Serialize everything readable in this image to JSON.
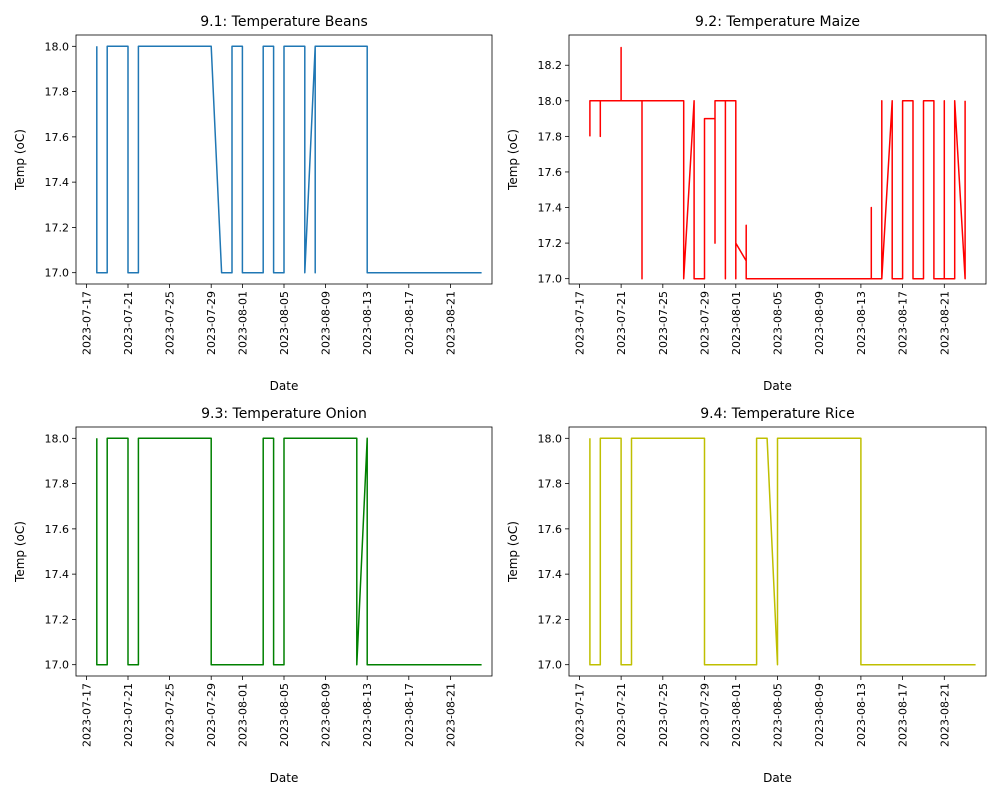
{
  "figure": {
    "background": "#ffffff"
  },
  "chart_data": [
    {
      "type": "line",
      "title": "9.1: Temperature Beans",
      "xlabel": "Date",
      "ylabel": "Temp (oC)",
      "color": "#1f77b4",
      "xlim": [
        "2023-07-16",
        "2023-08-25"
      ],
      "ylim": [
        16.95,
        18.05
      ],
      "xticks": [
        "2023-07-17",
        "2023-07-21",
        "2023-07-25",
        "2023-07-29",
        "2023-08-01",
        "2023-08-05",
        "2023-08-09",
        "2023-08-13",
        "2023-08-17",
        "2023-08-21"
      ],
      "yticks": [
        "17.0",
        "17.2",
        "17.4",
        "17.6",
        "17.8",
        "18.0"
      ],
      "series": [
        {
          "values": [
            [
              "2023-07-18 00:00",
              18.0
            ],
            [
              "2023-07-18 00:00",
              17.0
            ],
            [
              "2023-07-19 00:00",
              17.0
            ],
            [
              "2023-07-19 00:00",
              18.0
            ],
            [
              "2023-07-21 00:00",
              18.0
            ],
            [
              "2023-07-21 00:00",
              17.0
            ],
            [
              "2023-07-22 00:00",
              17.0
            ],
            [
              "2023-07-22 00:00",
              18.0
            ],
            [
              "2023-07-29 00:00",
              18.0
            ],
            [
              "2023-07-30 00:00",
              17.0
            ],
            [
              "2023-07-31 00:00",
              17.0
            ],
            [
              "2023-07-31 00:00",
              18.0
            ],
            [
              "2023-08-01 00:00",
              18.0
            ],
            [
              "2023-08-01 00:00",
              17.0
            ],
            [
              "2023-08-03 00:00",
              17.0
            ],
            [
              "2023-08-03 00:00",
              18.0
            ],
            [
              "2023-08-04 00:00",
              18.0
            ],
            [
              "2023-08-04 00:00",
              17.0
            ],
            [
              "2023-08-05 00:00",
              17.0
            ],
            [
              "2023-08-05 00:00",
              18.0
            ],
            [
              "2023-08-07 00:00",
              18.0
            ],
            [
              "2023-08-07 00:00",
              17.0
            ],
            [
              "2023-08-08 00:00",
              18.0
            ],
            [
              "2023-08-08 00:00",
              17.0
            ],
            [
              "2023-08-08 00:00",
              18.0
            ],
            [
              "2023-08-13 00:00",
              18.0
            ],
            [
              "2023-08-13 00:00",
              17.0
            ],
            [
              "2023-08-24 00:00",
              17.0
            ]
          ]
        }
      ]
    },
    {
      "type": "line",
      "title": "9.2: Temperature Maize",
      "xlabel": "Date",
      "ylabel": "Temp (oC)",
      "color": "#ff0000",
      "xlim": [
        "2023-07-16",
        "2023-08-25"
      ],
      "ylim": [
        16.97,
        18.37
      ],
      "xticks": [
        "2023-07-17",
        "2023-07-21",
        "2023-07-25",
        "2023-07-29",
        "2023-08-01",
        "2023-08-05",
        "2023-08-09",
        "2023-08-13",
        "2023-08-17",
        "2023-08-21"
      ],
      "yticks": [
        "17.0",
        "17.2",
        "17.4",
        "17.6",
        "17.8",
        "18.0",
        "18.2"
      ],
      "series": [
        {
          "values": [
            [
              "2023-07-18 00:00",
              17.8
            ],
            [
              "2023-07-18 00:00",
              18.0
            ],
            [
              "2023-07-19 00:00",
              18.0
            ],
            [
              "2023-07-19 00:00",
              17.8
            ],
            [
              "2023-07-19 00:00",
              18.0
            ],
            [
              "2023-07-21 00:00",
              18.0
            ],
            [
              "2023-07-21 00:00",
              18.3
            ],
            [
              "2023-07-21 00:00",
              18.0
            ],
            [
              "2023-07-23 00:00",
              18.0
            ],
            [
              "2023-07-23 00:00",
              17.0
            ],
            [
              "2023-07-23 00:00",
              18.0
            ],
            [
              "2023-07-27 00:00",
              18.0
            ],
            [
              "2023-07-27 00:00",
              17.0
            ],
            [
              "2023-07-28 00:00",
              18.0
            ],
            [
              "2023-07-28 00:00",
              17.0
            ],
            [
              "2023-07-29 00:00",
              17.0
            ],
            [
              "2023-07-29 00:00",
              17.9
            ],
            [
              "2023-07-30 00:00",
              17.9
            ],
            [
              "2023-07-30 00:00",
              17.2
            ],
            [
              "2023-07-30 00:00",
              18.0
            ],
            [
              "2023-07-31 00:00",
              18.0
            ],
            [
              "2023-07-31 00:00",
              17.0
            ],
            [
              "2023-07-31 00:00",
              18.0
            ],
            [
              "2023-08-01 00:00",
              18.0
            ],
            [
              "2023-08-01 00:00",
              17.0
            ],
            [
              "2023-08-01 00:00",
              17.2
            ],
            [
              "2023-08-02 00:00",
              17.1
            ],
            [
              "2023-08-02 00:00",
              17.3
            ],
            [
              "2023-08-02 00:00",
              17.0
            ],
            [
              "2023-08-14 00:00",
              17.0
            ],
            [
              "2023-08-14 00:00",
              17.4
            ],
            [
              "2023-08-14 00:00",
              17.0
            ],
            [
              "2023-08-15 00:00",
              17.0
            ],
            [
              "2023-08-15 00:00",
              18.0
            ],
            [
              "2023-08-15 00:00",
              17.0
            ],
            [
              "2023-08-16 00:00",
              18.0
            ],
            [
              "2023-08-16 00:00",
              17.0
            ],
            [
              "2023-08-17 00:00",
              17.0
            ],
            [
              "2023-08-17 00:00",
              18.0
            ],
            [
              "2023-08-18 00:00",
              18.0
            ],
            [
              "2023-08-18 00:00",
              17.0
            ],
            [
              "2023-08-19 00:00",
              17.0
            ],
            [
              "2023-08-19 00:00",
              18.0
            ],
            [
              "2023-08-20 00:00",
              18.0
            ],
            [
              "2023-08-20 00:00",
              17.0
            ],
            [
              "2023-08-21 00:00",
              17.0
            ],
            [
              "2023-08-21 00:00",
              18.0
            ],
            [
              "2023-08-21 00:00",
              17.0
            ],
            [
              "2023-08-22 00:00",
              17.0
            ],
            [
              "2023-08-22 00:00",
              18.0
            ],
            [
              "2023-08-23 00:00",
              17.0
            ],
            [
              "2023-08-23 00:00",
              18.0
            ]
          ]
        }
      ]
    },
    {
      "type": "line",
      "title": "9.3: Temperature Onion",
      "xlabel": "Date",
      "ylabel": "Temp (oC)",
      "color": "#008000",
      "xlim": [
        "2023-07-16",
        "2023-08-25"
      ],
      "ylim": [
        16.95,
        18.05
      ],
      "xticks": [
        "2023-07-17",
        "2023-07-21",
        "2023-07-25",
        "2023-07-29",
        "2023-08-01",
        "2023-08-05",
        "2023-08-09",
        "2023-08-13",
        "2023-08-17",
        "2023-08-21"
      ],
      "yticks": [
        "17.0",
        "17.2",
        "17.4",
        "17.6",
        "17.8",
        "18.0"
      ],
      "series": [
        {
          "values": [
            [
              "2023-07-18 00:00",
              18.0
            ],
            [
              "2023-07-18 00:00",
              17.0
            ],
            [
              "2023-07-19 00:00",
              17.0
            ],
            [
              "2023-07-19 00:00",
              18.0
            ],
            [
              "2023-07-21 00:00",
              18.0
            ],
            [
              "2023-07-21 00:00",
              17.0
            ],
            [
              "2023-07-22 00:00",
              17.0
            ],
            [
              "2023-07-22 00:00",
              18.0
            ],
            [
              "2023-07-29 00:00",
              18.0
            ],
            [
              "2023-07-29 00:00",
              17.0
            ],
            [
              "2023-08-03 00:00",
              17.0
            ],
            [
              "2023-08-03 00:00",
              18.0
            ],
            [
              "2023-08-04 00:00",
              18.0
            ],
            [
              "2023-08-04 00:00",
              17.0
            ],
            [
              "2023-08-05 00:00",
              17.0
            ],
            [
              "2023-08-05 00:00",
              18.0
            ],
            [
              "2023-08-12 00:00",
              18.0
            ],
            [
              "2023-08-12 00:00",
              17.0
            ],
            [
              "2023-08-13 00:00",
              18.0
            ],
            [
              "2023-08-13 00:00",
              17.0
            ],
            [
              "2023-08-24 00:00",
              17.0
            ]
          ]
        }
      ]
    },
    {
      "type": "line",
      "title": "9.4: Temperature Rice",
      "xlabel": "Date",
      "ylabel": "Temp (oC)",
      "color": "#bfbf00",
      "xlim": [
        "2023-07-16",
        "2023-08-25"
      ],
      "ylim": [
        16.95,
        18.05
      ],
      "xticks": [
        "2023-07-17",
        "2023-07-21",
        "2023-07-25",
        "2023-07-29",
        "2023-08-01",
        "2023-08-05",
        "2023-08-09",
        "2023-08-13",
        "2023-08-17",
        "2023-08-21"
      ],
      "yticks": [
        "17.0",
        "17.2",
        "17.4",
        "17.6",
        "17.8",
        "18.0"
      ],
      "series": [
        {
          "values": [
            [
              "2023-07-18 00:00",
              18.0
            ],
            [
              "2023-07-18 00:00",
              17.0
            ],
            [
              "2023-07-19 00:00",
              17.0
            ],
            [
              "2023-07-19 00:00",
              18.0
            ],
            [
              "2023-07-21 00:00",
              18.0
            ],
            [
              "2023-07-21 00:00",
              17.0
            ],
            [
              "2023-07-22 00:00",
              17.0
            ],
            [
              "2023-07-22 00:00",
              18.0
            ],
            [
              "2023-07-29 00:00",
              18.0
            ],
            [
              "2023-07-29 00:00",
              17.0
            ],
            [
              "2023-08-03 00:00",
              17.0
            ],
            [
              "2023-08-03 00:00",
              18.0
            ],
            [
              "2023-08-04 00:00",
              18.0
            ],
            [
              "2023-08-05 00:00",
              17.0
            ],
            [
              "2023-08-05 00:00",
              18.0
            ],
            [
              "2023-08-13 00:00",
              18.0
            ],
            [
              "2023-08-13 00:00",
              17.0
            ],
            [
              "2023-08-24 00:00",
              17.0
            ]
          ]
        }
      ]
    }
  ]
}
